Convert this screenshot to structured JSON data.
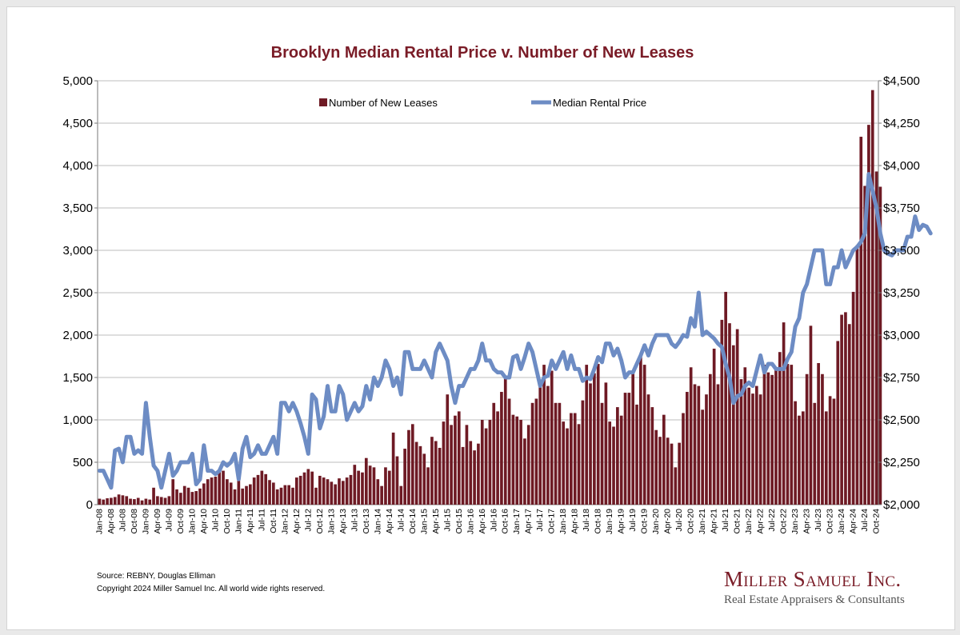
{
  "colors": {
    "bars": "#6e1a24",
    "line": "#6d8cc4",
    "title": "#7a1c27",
    "grid": "#bdbdbd"
  },
  "chart_data": {
    "type": "bar+line",
    "title": "Brooklyn Median Rental Price v. Number of New Leases",
    "start": "2008-01",
    "months": 202,
    "x_tick_labels": [
      "Jan-08",
      "Apr-08",
      "Jul-08",
      "Oct-08",
      "Jan-09",
      "Apr-09",
      "Jul-09",
      "Oct-09",
      "Jan-10",
      "Apr-10",
      "Jul-10",
      "Oct-10",
      "Jan-11",
      "Apr-11",
      "Jul-11",
      "Oct-11",
      "Jan-12",
      "Apr-12",
      "Jul-12",
      "Oct-12",
      "Jan-13",
      "Apr-13",
      "Jul-13",
      "Oct-13",
      "Jan-14",
      "Apr-14",
      "Jul-14",
      "Oct-14",
      "Jan-15",
      "Apr-15",
      "Jul-15",
      "Oct-15",
      "Jan-16",
      "Apr-16",
      "Jul-16",
      "Oct-16",
      "Jan-17",
      "Apr-17",
      "Jul-17",
      "Oct-17",
      "Jan-18",
      "Apr-18",
      "Jul-18",
      "Oct-18",
      "Jan-19",
      "Apr-19",
      "Jul-19",
      "Oct-19",
      "Jan-20",
      "Apr-20",
      "Jul-20",
      "Oct-20",
      "Jan-21",
      "Apr-21",
      "Jul-21",
      "Oct-21",
      "Jan-22",
      "Apr-22",
      "Jul-22",
      "Oct-22",
      "Jan-23",
      "Apr-23",
      "Jul-23",
      "Oct-23",
      "Jan-24",
      "Apr-24",
      "Jul-24",
      "Oct-24"
    ],
    "left_axis": {
      "min": 0,
      "max": 5000,
      "ticks": [
        "0",
        "500",
        "1,000",
        "1,500",
        "2,000",
        "2,500",
        "3,000",
        "3,500",
        "4,000",
        "4,500",
        "5,000"
      ]
    },
    "right_axis": {
      "min": 2000,
      "max": 4500,
      "ticks": [
        "$2,000",
        "$2,250",
        "$2,500",
        "$2,750",
        "$3,000",
        "$3,250",
        "$3,500",
        "$3,750",
        "$4,000",
        "$4,250",
        "$4,500"
      ]
    },
    "grid": true,
    "legend_position": "top-center",
    "series": [
      {
        "name": "Number of New Leases",
        "type": "bar",
        "axis": "left",
        "values": [
          70,
          60,
          75,
          80,
          90,
          120,
          110,
          100,
          70,
          65,
          80,
          50,
          70,
          60,
          200,
          100,
          90,
          80,
          100,
          300,
          180,
          140,
          220,
          200,
          150,
          160,
          190,
          250,
          300,
          320,
          330,
          400,
          400,
          300,
          260,
          180,
          370,
          190,
          220,
          240,
          320,
          350,
          400,
          360,
          290,
          260,
          180,
          200,
          230,
          230,
          200,
          320,
          340,
          380,
          420,
          390,
          200,
          340,
          320,
          300,
          270,
          240,
          310,
          280,
          320,
          350,
          470,
          400,
          380,
          550,
          460,
          440,
          300,
          220,
          440,
          400,
          850,
          570,
          220,
          660,
          880,
          950,
          740,
          690,
          600,
          440,
          800,
          750,
          670,
          980,
          1300,
          940,
          1050,
          1100,
          680,
          940,
          750,
          640,
          720,
          1000,
          900,
          1000,
          1200,
          1100,
          1330,
          1500,
          1250,
          1060,
          1040,
          1000,
          780,
          940,
          1200,
          1250,
          1460,
          1650,
          1400,
          1580,
          1200,
          1200,
          980,
          900,
          1080,
          1080,
          950,
          1230,
          1650,
          1430,
          1550,
          1660,
          1200,
          1440,
          980,
          920,
          1150,
          1050,
          1320,
          1320,
          1580,
          1180,
          1760,
          1650,
          1300,
          1150,
          880,
          800,
          1060,
          790,
          720,
          440,
          730,
          1080,
          1330,
          1620,
          1420,
          1400,
          1120,
          1300,
          1540,
          1840,
          1420,
          2180,
          2510,
          2140,
          1880,
          2070,
          1480,
          1620,
          1380,
          1310,
          1400,
          1300,
          1650,
          1560,
          1530,
          1600,
          1800,
          2150,
          1660,
          1650,
          1220,
          1050,
          1100,
          1540,
          2110,
          1200,
          1670,
          1540,
          1100,
          1280,
          1250,
          1930,
          2240,
          2270,
          2130,
          2510,
          3060,
          4340,
          3760,
          4480,
          4890,
          3930,
          3750
        ]
      },
      {
        "name": "Median Rental Price",
        "type": "line",
        "axis": "right",
        "values": [
          2200,
          2200,
          2150,
          2100,
          2320,
          2330,
          2250,
          2400,
          2400,
          2300,
          2320,
          2300,
          2600,
          2400,
          2230,
          2200,
          2100,
          2200,
          2300,
          2170,
          2200,
          2250,
          2250,
          2250,
          2300,
          2120,
          2150,
          2350,
          2200,
          2200,
          2180,
          2200,
          2250,
          2230,
          2250,
          2300,
          2150,
          2330,
          2400,
          2280,
          2300,
          2350,
          2300,
          2300,
          2350,
          2400,
          2300,
          2600,
          2600,
          2550,
          2600,
          2550,
          2480,
          2400,
          2300,
          2650,
          2620,
          2450,
          2520,
          2700,
          2550,
          2550,
          2700,
          2650,
          2500,
          2550,
          2600,
          2550,
          2580,
          2700,
          2620,
          2750,
          2700,
          2750,
          2850,
          2800,
          2700,
          2750,
          2650,
          2900,
          2900,
          2800,
          2800,
          2800,
          2850,
          2800,
          2750,
          2900,
          2950,
          2900,
          2850,
          2700,
          2600,
          2700,
          2700,
          2750,
          2800,
          2800,
          2850,
          2950,
          2850,
          2850,
          2800,
          2780,
          2780,
          2750,
          2750,
          2870,
          2880,
          2800,
          2870,
          2950,
          2900,
          2800,
          2700,
          2750,
          2760,
          2850,
          2800,
          2850,
          2900,
          2800,
          2880,
          2800,
          2800,
          2730,
          2750,
          2740,
          2800,
          2870,
          2840,
          2950,
          2950,
          2880,
          2920,
          2850,
          2750,
          2780,
          2780,
          2830,
          2880,
          2940,
          2880,
          2950,
          3000,
          3000,
          3000,
          3000,
          2950,
          2930,
          2960,
          3000,
          2990,
          3100,
          3050,
          3250,
          3000,
          3020,
          3000,
          2980,
          2950,
          2930,
          2830,
          2750,
          2600,
          2640,
          2650,
          2700,
          2720,
          2700,
          2790,
          2880,
          2780,
          2830,
          2830,
          2800,
          2800,
          2800,
          2860,
          2900,
          3050,
          3100,
          3250,
          3300,
          3400,
          3500,
          3500,
          3500,
          3300,
          3300,
          3400,
          3400,
          3500,
          3400,
          3450,
          3500,
          3520,
          3550,
          3600,
          3950,
          3850,
          3750,
          3600,
          3500,
          3480,
          3470,
          3500,
          3500,
          3500,
          3580,
          3580,
          3700,
          3620,
          3650,
          3640,
          3600
        ]
      }
    ]
  },
  "footer": {
    "source": "Source: REBNY, Douglas Elliman",
    "copyright": "Copyright 2024 Miller Samuel Inc.  All world wide rights reserved."
  },
  "brand": {
    "name": "Miller Samuel Inc.",
    "tagline": "Real Estate Appraisers & Consultants"
  }
}
